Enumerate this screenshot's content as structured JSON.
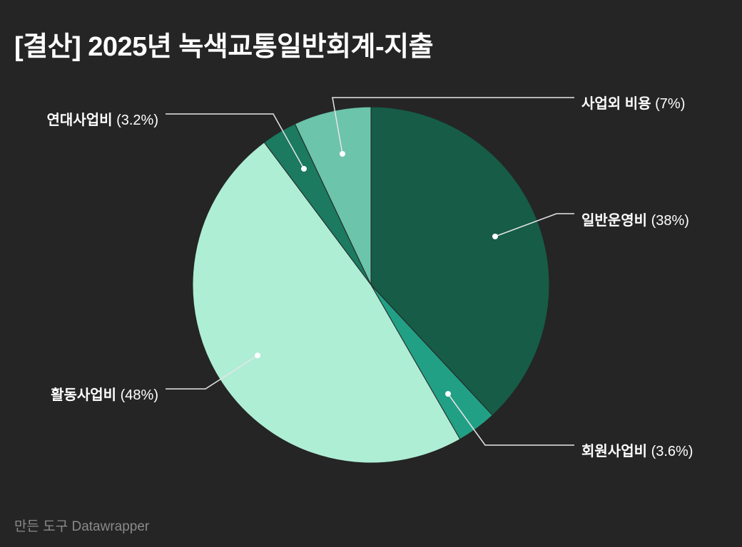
{
  "title": "[결산] 2025년 녹색교통일반회계-지출",
  "credit": "만든 도구 Datawrapper",
  "chart_data": {
    "type": "pie",
    "title": "[결산] 2025년 녹색교통일반회계-지출",
    "start_angle": "top, clockwise",
    "slices": [
      {
        "name": "일반운영비",
        "value": 38,
        "pct_label": "(38%)",
        "color": "#165c47"
      },
      {
        "name": "회원사업비",
        "value": 3.6,
        "pct_label": "(3.6%)",
        "color": "#22a085"
      },
      {
        "name": "활동사업비",
        "value": 48,
        "pct_label": "(48%)",
        "color": "#aeeed5"
      },
      {
        "name": "연대사업비",
        "value": 3.2,
        "pct_label": "(3.2%)",
        "color": "#1b7a60"
      },
      {
        "name": "사업외 비용",
        "value": 7,
        "pct_label": "(7%)",
        "color": "#6cc4aa"
      }
    ]
  }
}
